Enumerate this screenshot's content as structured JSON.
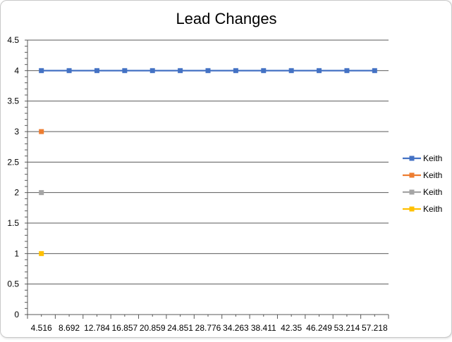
{
  "chart_data": {
    "type": "line",
    "title": "Lead Changes",
    "xlabel": "",
    "ylabel": "",
    "ylim": [
      0,
      4.5
    ],
    "y_ticks": [
      "0",
      "0.5",
      "1",
      "1.5",
      "2",
      "2.5",
      "3",
      "3.5",
      "4",
      "4.5"
    ],
    "categories": [
      "4.516",
      "8.692",
      "12.784",
      "16.857",
      "20.859",
      "24.851",
      "28.776",
      "34.263",
      "38.411",
      "42.35",
      "46.249",
      "53.214",
      "57.218"
    ],
    "grid": true,
    "legend_position": "right",
    "series": [
      {
        "name": "Keith",
        "color": "#4472C4",
        "values": [
          4,
          4,
          4,
          4,
          4,
          4,
          4,
          4,
          4,
          4,
          4,
          4,
          4
        ]
      },
      {
        "name": "Keith",
        "color": "#ED7D31",
        "values": [
          3,
          null,
          null,
          null,
          null,
          null,
          null,
          null,
          null,
          null,
          null,
          null,
          null
        ]
      },
      {
        "name": "Keith",
        "color": "#A5A5A5",
        "values": [
          2,
          null,
          null,
          null,
          null,
          null,
          null,
          null,
          null,
          null,
          null,
          null,
          null
        ]
      },
      {
        "name": "Keith",
        "color": "#FFC000",
        "values": [
          1,
          null,
          null,
          null,
          null,
          null,
          null,
          null,
          null,
          null,
          null,
          null,
          null
        ]
      }
    ]
  }
}
